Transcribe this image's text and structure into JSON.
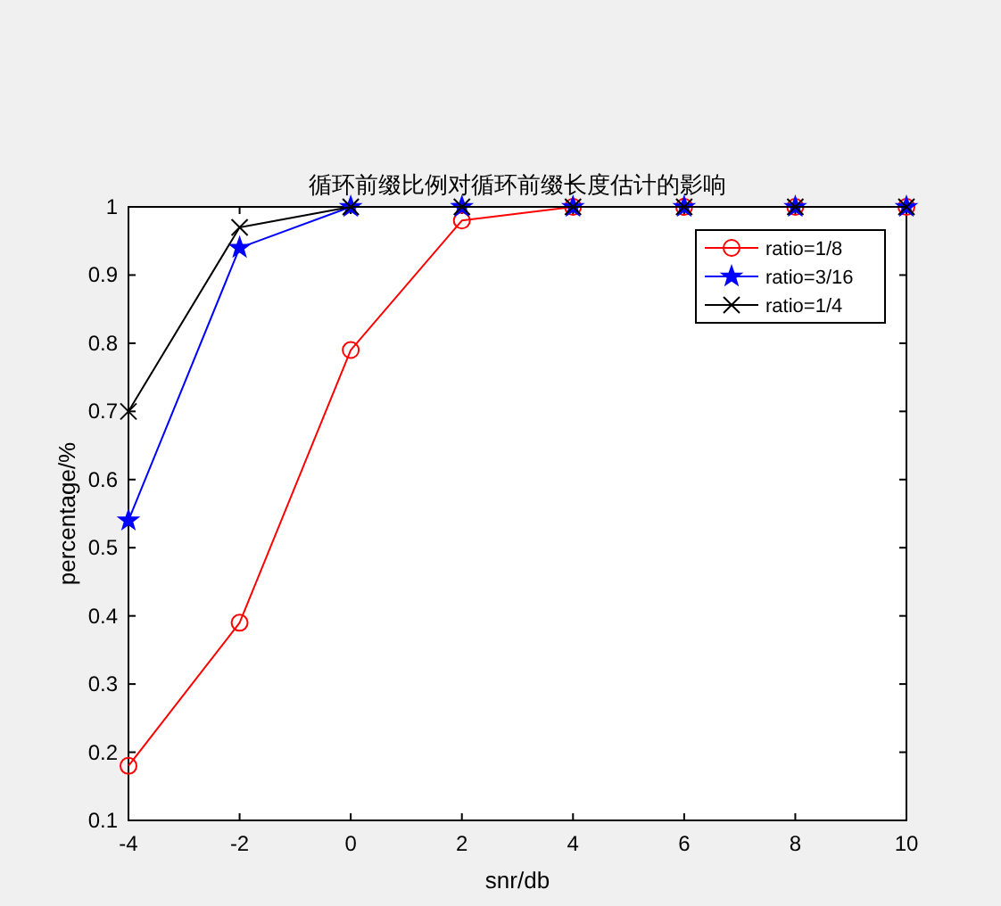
{
  "chart_data": {
    "type": "line",
    "title": "循环前缀比例对循环前缀长度估计的影响",
    "xlabel": "snr/db",
    "ylabel": "percentage/%",
    "x": [
      -4,
      -2,
      0,
      2,
      4,
      6,
      8,
      10
    ],
    "series": [
      {
        "name": "ratio=1/8",
        "color": "#ff0000",
        "marker": "circle",
        "values": [
          0.18,
          0.39,
          0.79,
          0.98,
          1,
          1,
          1,
          1
        ]
      },
      {
        "name": "ratio=3/16",
        "color": "#0000ff",
        "marker": "star",
        "values": [
          0.54,
          0.94,
          1,
          1,
          1,
          1,
          1,
          1
        ]
      },
      {
        "name": "ratio=1/4",
        "color": "#000000",
        "marker": "cross",
        "values": [
          0.7,
          0.97,
          1,
          1,
          1,
          1,
          1,
          1
        ]
      }
    ],
    "xlim": [
      -4,
      10
    ],
    "xticks": [
      -4,
      -2,
      0,
      2,
      4,
      6,
      8,
      10
    ],
    "ylim": [
      0.1,
      1
    ],
    "yticks": [
      0.1,
      0.2,
      0.3,
      0.4,
      0.5,
      0.6,
      0.7,
      0.8,
      0.9,
      1
    ],
    "grid": false,
    "legend": "top right",
    "line_style": "solid"
  }
}
